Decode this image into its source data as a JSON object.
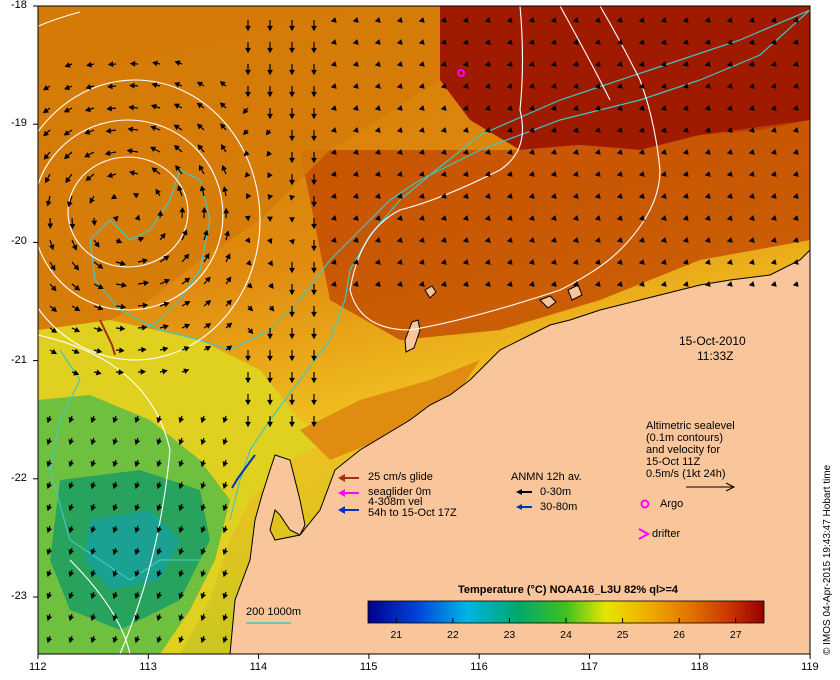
{
  "axes": {
    "x_ticks": [
      "112",
      "113",
      "114",
      "115",
      "116",
      "117",
      "118",
      "119"
    ],
    "y_ticks": [
      "-18",
      "-19",
      "-20",
      "-21",
      "-22",
      "-23"
    ]
  },
  "timestamp": {
    "date": "15-Oct-2010",
    "time": "11:33Z"
  },
  "altimetry_note": [
    "Altimetric sealevel",
    "(0.1m contours)",
    "and velocity for",
    "15-Oct 11Z",
    "0.5m/s (1kt 24h)"
  ],
  "glider_legend": {
    "items": [
      {
        "label": "25 cm/s glide",
        "color": "#a0320a"
      },
      {
        "label": "seaglider 0m",
        "color": "#ff00ff"
      },
      {
        "label": "4-308m vel",
        "color": null
      },
      {
        "label": "54h to 15-Oct 17Z",
        "color": "#0030c0"
      }
    ]
  },
  "anmn_legend": {
    "title": "ANMN 12h av.",
    "items": [
      {
        "label": "0-30m",
        "color": "#000000"
      },
      {
        "label": "30-80m",
        "color": "#0030c0"
      }
    ]
  },
  "markers": {
    "argo_label": "Argo",
    "drifter_label": "drifter",
    "argo_color": "#ff00ff"
  },
  "isobath_label": "200  1000m",
  "colorbar": {
    "title": "Temperature (°C) NOAA16_L3U 82% ql>=4",
    "ticks": [
      "21",
      "22",
      "23",
      "24",
      "25",
      "26",
      "27"
    ],
    "range": [
      20.5,
      27.5
    ]
  },
  "credit": "© IMOS 04-Apr-2015 19:43:47 Hobart time",
  "colors": {
    "land": "#f9c59a",
    "isobath": "#40c8c0",
    "contour": "#ffffff"
  }
}
